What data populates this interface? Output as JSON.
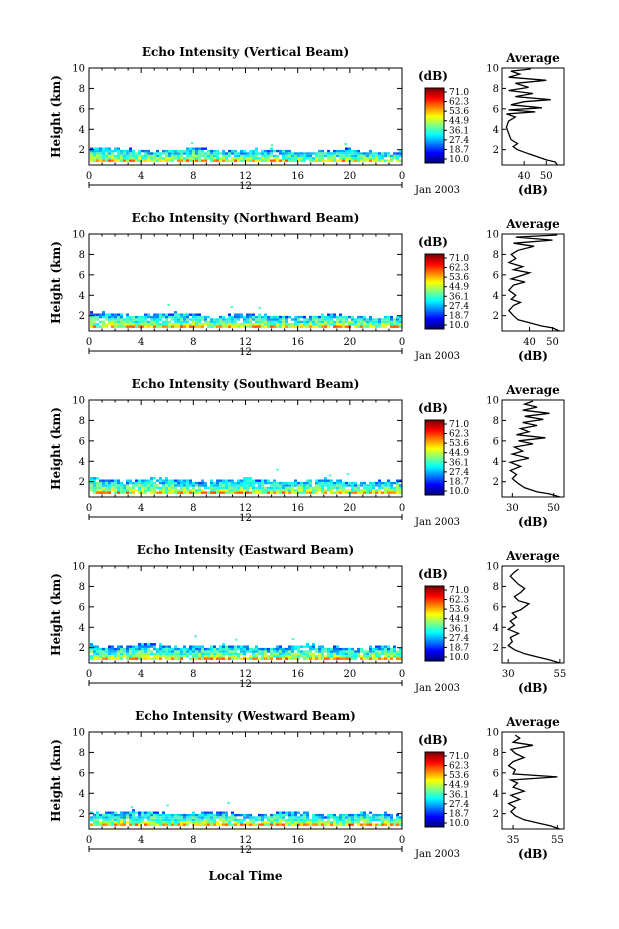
{
  "figure": {
    "xlabel": "Local Time",
    "date_label": "Jan 2003",
    "mid_label": "12",
    "colorbar_unit": "(dB)",
    "colorbar_ticks": [
      "71.0",
      "62.3",
      "53.6",
      "44.9",
      "36.1",
      "27.4",
      "18.7",
      "10.0"
    ],
    "average_title": "Average",
    "average_xlabel": "(dB)"
  },
  "chart_data": [
    {
      "type": "heatmap",
      "title": "Echo Intensity (Vertical Beam)",
      "ylabel": "Height (km)",
      "x_ticks": [
        "0",
        "4",
        "8",
        "12",
        "16",
        "20",
        "0"
      ],
      "y_ticks": [
        "2",
        "4",
        "6",
        "8",
        "10"
      ],
      "xlim": [
        0,
        24
      ],
      "ylim": [
        0.5,
        10
      ],
      "color_range": [
        10.0,
        71.0
      ],
      "echo_layer": {
        "height_bottom_km": 0.8,
        "height_top_km": 2.2
      },
      "profile": {
        "title": "Average",
        "xlabel": "(dB)",
        "x_ticks": [
          "40",
          "50"
        ],
        "y_ticks": [
          "2",
          "4",
          "6",
          "8",
          "10"
        ],
        "xlim": [
          30,
          58
        ],
        "ylim": [
          0.5,
          10
        ],
        "points": [
          [
            55,
            0.5
          ],
          [
            54,
            0.8
          ],
          [
            50,
            1.0
          ],
          [
            46,
            1.3
          ],
          [
            42,
            1.6
          ],
          [
            37,
            2.0
          ],
          [
            35,
            2.3
          ],
          [
            37,
            2.6
          ],
          [
            34,
            3.0
          ],
          [
            33,
            3.6
          ],
          [
            32,
            4.2
          ],
          [
            33,
            4.8
          ],
          [
            36,
            5.2
          ],
          [
            32,
            5.5
          ],
          [
            45,
            5.7
          ],
          [
            33,
            5.9
          ],
          [
            48,
            6.1
          ],
          [
            34,
            6.4
          ],
          [
            40,
            6.7
          ],
          [
            52,
            6.9
          ],
          [
            36,
            7.2
          ],
          [
            44,
            7.5
          ],
          [
            33,
            7.8
          ],
          [
            42,
            8.1
          ],
          [
            36,
            8.5
          ],
          [
            50,
            8.8
          ],
          [
            33,
            9.1
          ],
          [
            38,
            9.4
          ],
          [
            34,
            9.7
          ],
          [
            43,
            9.9
          ]
        ]
      }
    },
    {
      "type": "heatmap",
      "title": "Echo Intensity (Northward Beam)",
      "ylabel": "Height (km)",
      "x_ticks": [
        "0",
        "4",
        "8",
        "12",
        "16",
        "20",
        "0"
      ],
      "y_ticks": [
        "2",
        "4",
        "6",
        "8",
        "10"
      ],
      "xlim": [
        0,
        24
      ],
      "ylim": [
        0.5,
        10
      ],
      "color_range": [
        10.0,
        71.0
      ],
      "echo_layer": {
        "height_bottom_km": 0.8,
        "height_top_km": 2.3
      },
      "profile": {
        "title": "Average",
        "xlabel": "(dB)",
        "x_ticks": [
          "40",
          "50"
        ],
        "y_ticks": [
          "2",
          "4",
          "6",
          "8",
          "10"
        ],
        "xlim": [
          28,
          55
        ],
        "ylim": [
          0.5,
          10
        ],
        "points": [
          [
            53,
            0.5
          ],
          [
            50,
            0.8
          ],
          [
            45,
            1.0
          ],
          [
            40,
            1.3
          ],
          [
            35,
            1.6
          ],
          [
            33,
            2.0
          ],
          [
            31,
            2.5
          ],
          [
            33,
            3.0
          ],
          [
            36,
            3.3
          ],
          [
            32,
            3.6
          ],
          [
            34,
            4.0
          ],
          [
            31,
            4.5
          ],
          [
            33,
            5.0
          ],
          [
            38,
            5.3
          ],
          [
            32,
            5.6
          ],
          [
            36,
            5.9
          ],
          [
            40,
            6.2
          ],
          [
            33,
            6.5
          ],
          [
            37,
            6.8
          ],
          [
            31,
            7.2
          ],
          [
            34,
            7.6
          ],
          [
            32,
            8.0
          ],
          [
            35,
            8.4
          ],
          [
            42,
            8.8
          ],
          [
            33,
            9.1
          ],
          [
            50,
            9.4
          ],
          [
            34,
            9.7
          ],
          [
            52,
            9.9
          ]
        ]
      }
    },
    {
      "type": "heatmap",
      "title": "Echo Intensity (Southward Beam)",
      "ylabel": "Height (km)",
      "x_ticks": [
        "0",
        "4",
        "8",
        "12",
        "16",
        "20",
        "0"
      ],
      "y_ticks": [
        "2",
        "4",
        "6",
        "8",
        "10"
      ],
      "xlim": [
        0,
        24
      ],
      "ylim": [
        0.5,
        10
      ],
      "color_range": [
        10.0,
        71.0
      ],
      "echo_layer": {
        "height_bottom_km": 0.8,
        "height_top_km": 2.4
      },
      "profile": {
        "title": "Average",
        "xlabel": "(dB)",
        "x_ticks": [
          "30",
          "50"
        ],
        "y_ticks": [
          "2",
          "4",
          "6",
          "8",
          "10"
        ],
        "xlim": [
          25,
          55
        ],
        "ylim": [
          0.5,
          10
        ],
        "points": [
          [
            53,
            0.5
          ],
          [
            48,
            0.8
          ],
          [
            42,
            1.0
          ],
          [
            36,
            1.4
          ],
          [
            33,
            1.8
          ],
          [
            30,
            2.3
          ],
          [
            32,
            2.7
          ],
          [
            29,
            3.1
          ],
          [
            34,
            3.5
          ],
          [
            29,
            3.9
          ],
          [
            38,
            4.3
          ],
          [
            30,
            4.7
          ],
          [
            35,
            5.0
          ],
          [
            31,
            5.4
          ],
          [
            40,
            5.7
          ],
          [
            33,
            6.0
          ],
          [
            46,
            6.3
          ],
          [
            32,
            6.6
          ],
          [
            38,
            6.9
          ],
          [
            34,
            7.2
          ],
          [
            42,
            7.5
          ],
          [
            35,
            7.8
          ],
          [
            45,
            8.1
          ],
          [
            36,
            8.4
          ],
          [
            48,
            8.7
          ],
          [
            35,
            9.0
          ],
          [
            42,
            9.3
          ],
          [
            36,
            9.6
          ],
          [
            40,
            9.9
          ]
        ]
      }
    },
    {
      "type": "heatmap",
      "title": "Echo Intensity (Eastward Beam)",
      "ylabel": "Height (km)",
      "x_ticks": [
        "0",
        "4",
        "8",
        "12",
        "16",
        "20",
        "0"
      ],
      "y_ticks": [
        "2",
        "4",
        "6",
        "8",
        "10"
      ],
      "xlim": [
        0,
        24
      ],
      "ylim": [
        0.5,
        10
      ],
      "color_range": [
        10.0,
        71.0
      ],
      "echo_layer": {
        "height_bottom_km": 0.8,
        "height_top_km": 2.4
      },
      "profile": {
        "title": "Average",
        "xlabel": "(dB)",
        "x_ticks": [
          "30",
          "55"
        ],
        "y_ticks": [
          "2",
          "4",
          "6",
          "8",
          "10"
        ],
        "xlim": [
          27,
          57
        ],
        "ylim": [
          0.5,
          10
        ],
        "points": [
          [
            55,
            0.5
          ],
          [
            50,
            0.8
          ],
          [
            44,
            1.1
          ],
          [
            38,
            1.4
          ],
          [
            33,
            1.8
          ],
          [
            30,
            2.2
          ],
          [
            32,
            2.6
          ],
          [
            31,
            3.0
          ],
          [
            35,
            3.4
          ],
          [
            30,
            3.8
          ],
          [
            33,
            4.2
          ],
          [
            31,
            4.6
          ],
          [
            34,
            5.0
          ],
          [
            32,
            5.4
          ],
          [
            36,
            5.7
          ],
          [
            38,
            6.0
          ],
          [
            40,
            6.3
          ],
          [
            35,
            6.6
          ],
          [
            33,
            7.0
          ],
          [
            36,
            7.4
          ],
          [
            38,
            7.8
          ],
          [
            35,
            8.2
          ],
          [
            33,
            8.6
          ],
          [
            31,
            9.0
          ],
          [
            33,
            9.4
          ],
          [
            35,
            9.7
          ]
        ]
      }
    },
    {
      "type": "heatmap",
      "title": "Echo Intensity (Westward Beam)",
      "ylabel": "Height (km)",
      "x_ticks": [
        "0",
        "4",
        "8",
        "12",
        "16",
        "20",
        "0"
      ],
      "y_ticks": [
        "2",
        "4",
        "6",
        "8",
        "10"
      ],
      "xlim": [
        0,
        24
      ],
      "ylim": [
        0.5,
        10
      ],
      "color_range": [
        10.0,
        71.0
      ],
      "echo_layer": {
        "height_bottom_km": 0.8,
        "height_top_km": 2.3
      },
      "profile": {
        "title": "Average",
        "xlabel": "(dB)",
        "x_ticks": [
          "35",
          "55"
        ],
        "y_ticks": [
          "2",
          "4",
          "6",
          "8",
          "10"
        ],
        "xlim": [
          30,
          58
        ],
        "ylim": [
          0.5,
          10
        ],
        "points": [
          [
            56,
            0.5
          ],
          [
            52,
            0.8
          ],
          [
            46,
            1.1
          ],
          [
            40,
            1.4
          ],
          [
            36,
            1.8
          ],
          [
            34,
            2.2
          ],
          [
            36,
            2.6
          ],
          [
            33,
            3.0
          ],
          [
            38,
            3.4
          ],
          [
            34,
            3.8
          ],
          [
            40,
            4.2
          ],
          [
            35,
            4.6
          ],
          [
            37,
            5.0
          ],
          [
            34,
            5.3
          ],
          [
            55,
            5.6
          ],
          [
            35,
            5.9
          ],
          [
            36,
            6.3
          ],
          [
            33,
            6.7
          ],
          [
            35,
            7.1
          ],
          [
            40,
            7.5
          ],
          [
            36,
            7.9
          ],
          [
            34,
            8.3
          ],
          [
            44,
            8.7
          ],
          [
            35,
            9.0
          ],
          [
            38,
            9.4
          ],
          [
            36,
            9.7
          ]
        ]
      }
    }
  ]
}
